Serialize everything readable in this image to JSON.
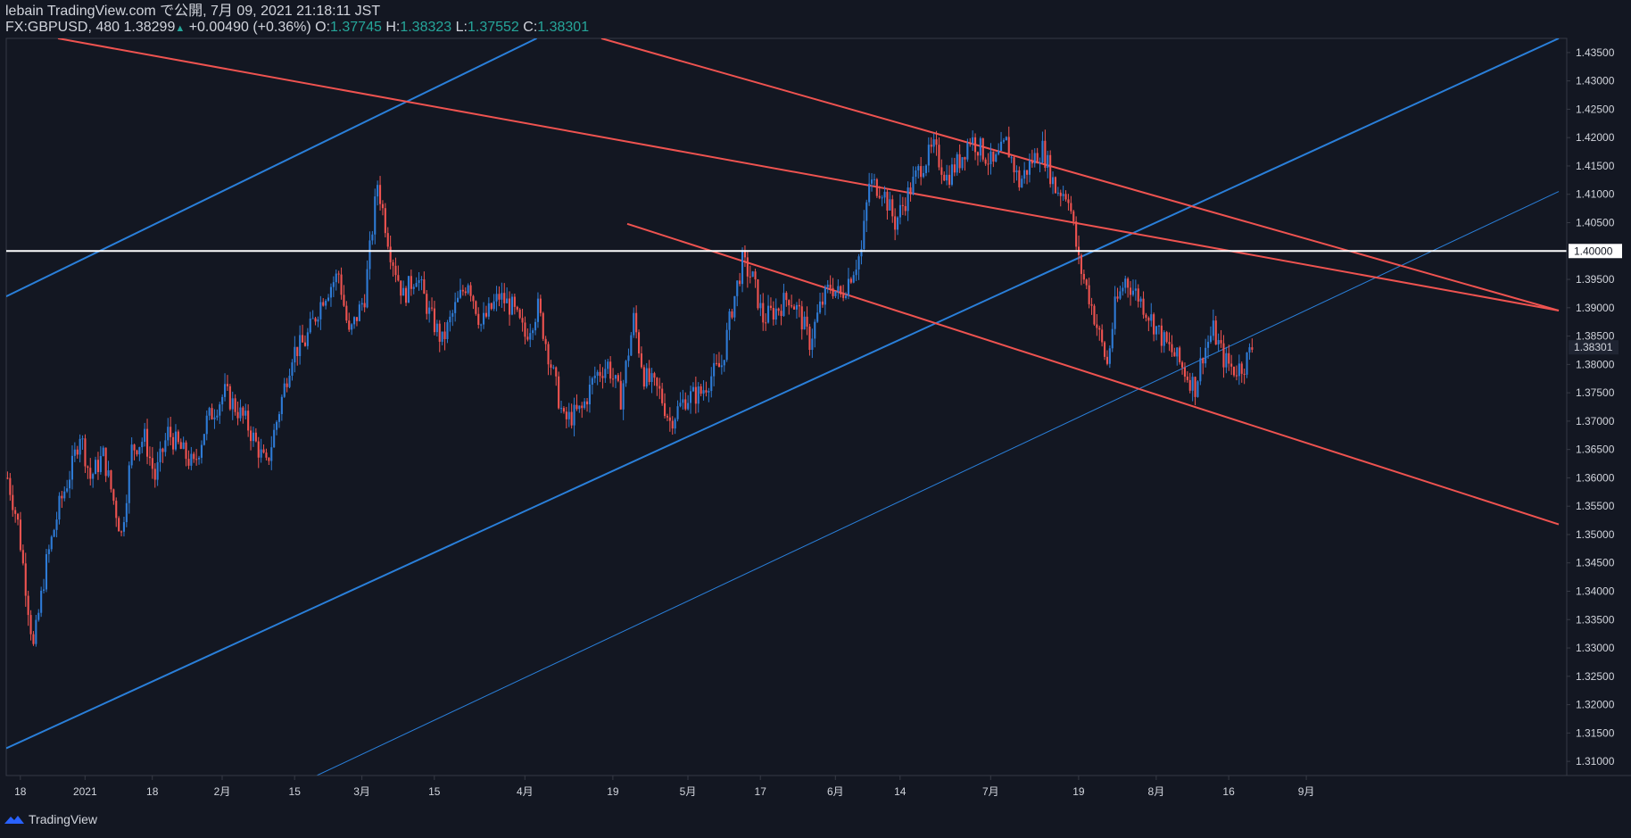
{
  "header": {
    "line1": "lebain TradingView.com で公開, 7月 09, 2021 21:18:11 JST",
    "symbol": "FX:GBPUSD, 480",
    "last": "1.38299",
    "change_arrow": "▲",
    "change": "+0.00490 (+0.36%)",
    "o_label": "O:",
    "o": "1.37745",
    "h_label": "H:",
    "h": "1.38323",
    "l_label": "L:",
    "l": "1.37552",
    "c_label": "C:",
    "c": "1.38301"
  },
  "footer": {
    "brand": "TradingView"
  },
  "colors": {
    "background": "#131722",
    "up": "#2e7bd6",
    "down": "#ef5350",
    "blue_line": "#2a7fd9",
    "red_line": "#ef5350",
    "white_line": "#ffffff",
    "axis_border": "#363a45"
  },
  "chart_data": {
    "type": "candlestick",
    "symbol": "FX:GBPUSD",
    "timeframe": "480",
    "ylim": [
      1.3075,
      1.4375
    ],
    "y_ticks": [
      "1.43500",
      "1.43000",
      "1.42500",
      "1.42000",
      "1.41500",
      "1.41000",
      "1.40500",
      "1.40000",
      "1.39500",
      "1.39000",
      "1.38500",
      "1.38301",
      "1.38000",
      "1.37500",
      "1.37000",
      "1.36500",
      "1.36000",
      "1.35500",
      "1.35000",
      "1.34500",
      "1.34000",
      "1.33500",
      "1.33000",
      "1.32500",
      "1.32000",
      "1.31500",
      "1.31000"
    ],
    "y_tick_values": [
      1.435,
      1.43,
      1.425,
      1.42,
      1.415,
      1.41,
      1.405,
      1.4,
      1.395,
      1.39,
      1.385,
      1.38301,
      1.38,
      1.375,
      1.37,
      1.365,
      1.36,
      1.355,
      1.35,
      1.345,
      1.34,
      1.335,
      1.33,
      1.325,
      1.32,
      1.315,
      1.31
    ],
    "x_ticks": [
      "18",
      "2021",
      "18",
      "2月",
      "15",
      "3月",
      "15",
      "4月",
      "19",
      "5月",
      "17",
      "6月",
      "14",
      "7月",
      "19",
      "8月",
      "16",
      "9月"
    ],
    "last_price_label": "1.38301",
    "horizontal_level": 1.4,
    "horizontal_level_label": "1.40000",
    "price_path": [
      [
        0,
        1.36
      ],
      [
        4,
        1.352
      ],
      [
        10,
        1.33
      ],
      [
        15,
        1.345
      ],
      [
        20,
        1.355
      ],
      [
        25,
        1.362
      ],
      [
        28,
        1.368
      ],
      [
        32,
        1.36
      ],
      [
        37,
        1.364
      ],
      [
        41,
        1.356
      ],
      [
        44,
        1.35
      ],
      [
        48,
        1.365
      ],
      [
        53,
        1.367
      ],
      [
        57,
        1.36
      ],
      [
        62,
        1.368
      ],
      [
        67,
        1.365
      ],
      [
        72,
        1.362
      ],
      [
        77,
        1.37
      ],
      [
        84,
        1.375
      ],
      [
        92,
        1.37
      ],
      [
        96,
        1.366
      ],
      [
        100,
        1.362
      ],
      [
        105,
        1.372
      ],
      [
        110,
        1.382
      ],
      [
        115,
        1.384
      ],
      [
        122,
        1.392
      ],
      [
        128,
        1.396
      ],
      [
        132,
        1.385
      ],
      [
        138,
        1.392
      ],
      [
        143,
        1.412
      ],
      [
        148,
        1.4
      ],
      [
        153,
        1.392
      ],
      [
        158,
        1.396
      ],
      [
        163,
        1.389
      ],
      [
        168,
        1.384
      ],
      [
        173,
        1.39
      ],
      [
        178,
        1.395
      ],
      [
        183,
        1.387
      ],
      [
        190,
        1.392
      ],
      [
        195,
        1.39
      ],
      [
        200,
        1.385
      ],
      [
        205,
        1.39
      ],
      [
        210,
        1.38
      ],
      [
        215,
        1.37
      ],
      [
        222,
        1.372
      ],
      [
        227,
        1.378
      ],
      [
        232,
        1.38
      ],
      [
        237,
        1.374
      ],
      [
        242,
        1.388
      ],
      [
        246,
        1.378
      ],
      [
        252,
        1.375
      ],
      [
        256,
        1.37
      ],
      [
        262,
        1.374
      ],
      [
        268,
        1.375
      ],
      [
        272,
        1.378
      ],
      [
        276,
        1.38
      ],
      [
        280,
        1.39
      ],
      [
        284,
        1.398
      ],
      [
        288,
        1.395
      ],
      [
        292,
        1.388
      ],
      [
        298,
        1.39
      ],
      [
        302,
        1.392
      ],
      [
        306,
        1.389
      ],
      [
        310,
        1.384
      ],
      [
        314,
        1.39
      ],
      [
        318,
        1.394
      ],
      [
        322,
        1.392
      ],
      [
        326,
        1.396
      ],
      [
        330,
        1.4
      ],
      [
        333,
        1.412
      ],
      [
        338,
        1.411
      ],
      [
        343,
        1.405
      ],
      [
        348,
        1.41
      ],
      [
        353,
        1.415
      ],
      [
        358,
        1.418
      ],
      [
        363,
        1.413
      ],
      [
        368,
        1.416
      ],
      [
        372,
        1.42
      ],
      [
        376,
        1.418
      ],
      [
        381,
        1.415
      ],
      [
        386,
        1.419
      ],
      [
        391,
        1.412
      ],
      [
        396,
        1.416
      ],
      [
        400,
        1.418
      ],
      [
        405,
        1.411
      ],
      [
        410,
        1.41
      ],
      [
        414,
        1.398
      ],
      [
        418,
        1.392
      ],
      [
        422,
        1.385
      ],
      [
        425,
        1.38
      ],
      [
        428,
        1.39
      ],
      [
        432,
        1.395
      ],
      [
        437,
        1.392
      ],
      [
        442,
        1.388
      ],
      [
        447,
        1.384
      ],
      [
        452,
        1.381
      ],
      [
        456,
        1.378
      ],
      [
        459,
        1.376
      ],
      [
        462,
        1.382
      ],
      [
        466,
        1.386
      ],
      [
        470,
        1.381
      ],
      [
        474,
        1.379
      ],
      [
        478,
        1.38
      ],
      [
        481,
        1.383
      ]
    ],
    "trend_lines": [
      {
        "color": "blue",
        "x1": 0,
        "y1": 1.392,
        "x2": 205,
        "y2": 1.4375
      },
      {
        "color": "blue",
        "x1": 0,
        "y1": 1.3123,
        "x2": 600,
        "y2": 1.4375
      },
      {
        "color": "blue",
        "x1": 120,
        "y1": 1.3075,
        "x2": 600,
        "y2": 1.4105
      },
      {
        "color": "red",
        "x1": 20,
        "y1": 1.4375,
        "x2": 600,
        "y2": 1.3895
      },
      {
        "color": "red",
        "x1": 230,
        "y1": 1.4375,
        "x2": 600,
        "y2": 1.3895
      },
      {
        "color": "red",
        "x1": 240,
        "y1": 1.4048,
        "x2": 600,
        "y2": 1.3518
      }
    ]
  }
}
